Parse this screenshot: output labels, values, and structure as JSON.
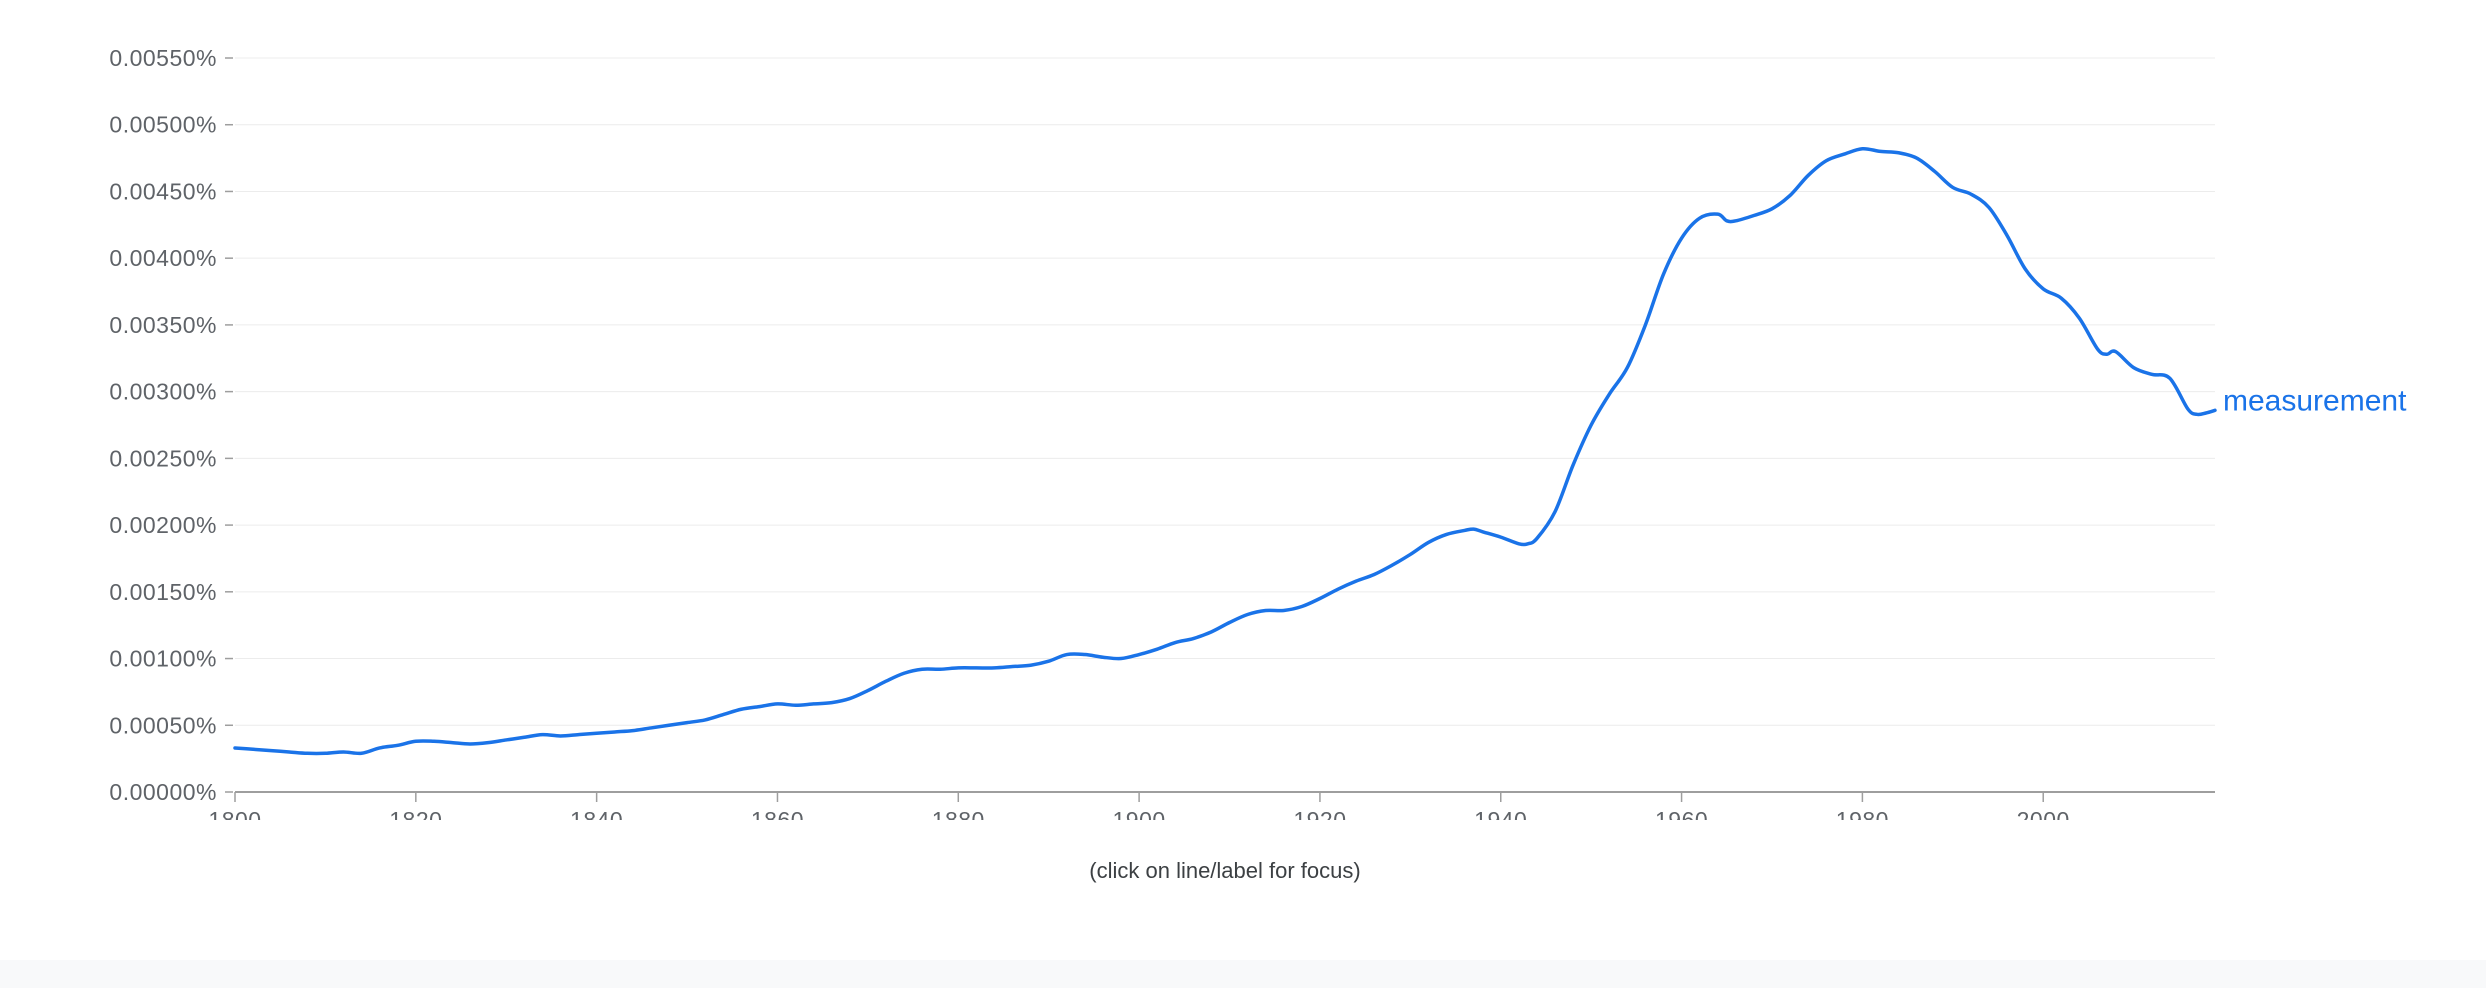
{
  "hint": "(click on line/label for focus)",
  "colors": {
    "line": "#1a73e8",
    "grid": "#ececec",
    "axis": "#9e9e9e",
    "tick_text": "#5f6368"
  },
  "chart_data": {
    "type": "line",
    "ylim": [
      0,
      0.0055
    ],
    "xlim": [
      1800,
      2019
    ],
    "y_ticks": [
      0,
      0.0005,
      0.001,
      0.0015,
      0.002,
      0.0025,
      0.003,
      0.0035,
      0.004,
      0.0045,
      0.005,
      0.0055
    ],
    "y_tick_labels": [
      "0.00000%",
      "0.00050%",
      "0.00100%",
      "0.00150%",
      "0.00200%",
      "0.00250%",
      "0.00300%",
      "0.00350%",
      "0.00400%",
      "0.00450%",
      "0.00500%",
      "0.00550%"
    ],
    "x_ticks": [
      1800,
      1820,
      1840,
      1860,
      1880,
      1900,
      1920,
      1940,
      1960,
      1980,
      2000
    ],
    "x_tick_labels": [
      "1800",
      "1820",
      "1840",
      "1860",
      "1880",
      "1900",
      "1920",
      "1940",
      "1960",
      "1980",
      "2000"
    ],
    "grid": true,
    "series": [
      {
        "name": "measurement",
        "x": [
          1800,
          1802,
          1804,
          1806,
          1808,
          1810,
          1812,
          1814,
          1816,
          1818,
          1820,
          1822,
          1824,
          1826,
          1828,
          1830,
          1832,
          1834,
          1836,
          1838,
          1840,
          1842,
          1844,
          1846,
          1848,
          1850,
          1852,
          1854,
          1856,
          1858,
          1860,
          1862,
          1864,
          1866,
          1868,
          1870,
          1872,
          1874,
          1876,
          1878,
          1880,
          1882,
          1884,
          1886,
          1888,
          1890,
          1892,
          1894,
          1896,
          1898,
          1900,
          1902,
          1904,
          1906,
          1908,
          1910,
          1912,
          1914,
          1916,
          1918,
          1920,
          1922,
          1924,
          1926,
          1928,
          1930,
          1932,
          1934,
          1936,
          1937,
          1938,
          1940,
          1942,
          1943,
          1944,
          1946,
          1948,
          1950,
          1952,
          1954,
          1956,
          1958,
          1960,
          1962,
          1964,
          1965,
          1966,
          1968,
          1970,
          1972,
          1974,
          1976,
          1978,
          1980,
          1982,
          1984,
          1986,
          1988,
          1990,
          1992,
          1994,
          1996,
          1998,
          2000,
          2002,
          2004,
          2006,
          2007,
          2008,
          2010,
          2012,
          2014,
          2016,
          2017,
          2018,
          2019
        ],
        "y": [
          0.00033,
          0.00032,
          0.00031,
          0.0003,
          0.00029,
          0.00029,
          0.0003,
          0.00029,
          0.00033,
          0.00035,
          0.00038,
          0.00038,
          0.00037,
          0.00036,
          0.00037,
          0.00039,
          0.00041,
          0.00043,
          0.00042,
          0.00043,
          0.00044,
          0.00045,
          0.00046,
          0.00048,
          0.0005,
          0.00052,
          0.00054,
          0.00058,
          0.00062,
          0.00064,
          0.00066,
          0.00065,
          0.00066,
          0.00067,
          0.0007,
          0.00076,
          0.00083,
          0.00089,
          0.00092,
          0.00092,
          0.00093,
          0.00093,
          0.00093,
          0.00094,
          0.00095,
          0.00098,
          0.00103,
          0.00103,
          0.00101,
          0.001,
          0.00103,
          0.00107,
          0.00112,
          0.00115,
          0.0012,
          0.00127,
          0.00133,
          0.00136,
          0.00136,
          0.00139,
          0.00145,
          0.00152,
          0.00158,
          0.00163,
          0.0017,
          0.00178,
          0.00187,
          0.00193,
          0.00196,
          0.00197,
          0.00195,
          0.00191,
          0.00186,
          0.00186,
          0.0019,
          0.0021,
          0.00245,
          0.00275,
          0.00298,
          0.00318,
          0.0035,
          0.00388,
          0.00415,
          0.0043,
          0.00433,
          0.00428,
          0.00428,
          0.00432,
          0.00437,
          0.00447,
          0.00462,
          0.00473,
          0.00478,
          0.00482,
          0.0048,
          0.00479,
          0.00475,
          0.00465,
          0.00453,
          0.00448,
          0.00438,
          0.00417,
          0.00392,
          0.00377,
          0.0037,
          0.00355,
          0.00332,
          0.00328,
          0.0033,
          0.00318,
          0.00313,
          0.0031,
          0.00287,
          0.00283,
          0.00284,
          0.00286
        ]
      }
    ]
  }
}
